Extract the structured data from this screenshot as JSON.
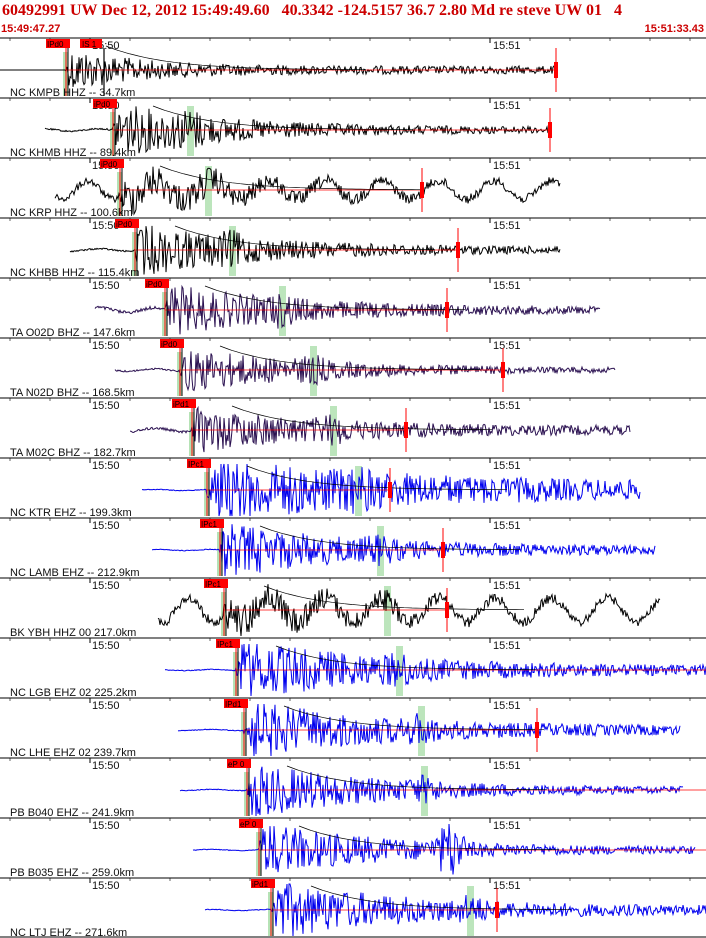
{
  "header": {
    "title": "60492991 UW Dec 12, 2012 15:49:49.60   40.3342 -124.5157 36.7 2.80 Md re steve UW 01   4",
    "time_start": "15:49:47.27",
    "time_end": "15:51:33.43"
  },
  "time_labels": {
    "t1550": "15:50",
    "t1551": "15:51"
  },
  "colors": {
    "pick": "#ff0000",
    "s_window": "#b5e2b5",
    "trace_black": "#000000",
    "trace_purple": "#2a1050",
    "trace_blue": "#0000ee",
    "label_text": "#111111",
    "frame": "#000000"
  },
  "traces": [
    {
      "station": "NC KMPB HHZ -- 34.7km",
      "pick": "IPd0",
      "pick2": "IS 1",
      "color": "trace_black",
      "onset": 66,
      "s": 106,
      "start": 0,
      "end": 556,
      "amp": 20,
      "pre": 1,
      "post": 4,
      "coda": 70,
      "endpick": 556,
      "hasS": false,
      "style": "flat"
    },
    {
      "station": "NC KHMB HHZ -- 89.4km",
      "pick": "iPd0",
      "pick2": "",
      "color": "trace_black",
      "onset": 113,
      "s": 190,
      "start": 45,
      "end": 550,
      "amp": 26,
      "pre": 2,
      "post": 3,
      "coda": 110,
      "endpick": 550,
      "hasS": true,
      "style": "normal"
    },
    {
      "station": "NC KRP HHZ -- 100.6km",
      "pick": "iPd0",
      "pick2": "",
      "color": "trace_black",
      "onset": 120,
      "s": 208,
      "start": 55,
      "end": 560,
      "amp": 28,
      "pre": 9,
      "post": 6,
      "coda": 120,
      "endpick": 422,
      "hasS": true,
      "style": "wavy"
    },
    {
      "station": "NC KHBB HHZ -- 115.4km",
      "pick": "iPd0",
      "pick2": "",
      "color": "trace_black",
      "onset": 135,
      "s": 232,
      "start": 70,
      "end": 560,
      "amp": 25,
      "pre": 2,
      "post": 3,
      "coda": 120,
      "endpick": 458,
      "hasS": true,
      "style": "normal"
    },
    {
      "station": "TA O02D BHZ -- 147.6km",
      "pick": "iPd0",
      "pick2": "",
      "color": "trace_purple",
      "onset": 165,
      "s": 282,
      "start": 95,
      "end": 600,
      "amp": 24,
      "pre": 4,
      "post": 3,
      "coda": 130,
      "endpick": 447,
      "hasS": true,
      "style": "normal"
    },
    {
      "station": "TA N02D BHZ -- 168.5km",
      "pick": "iPd0",
      "pick2": "",
      "color": "trace_purple",
      "onset": 180,
      "s": 313,
      "start": 115,
      "end": 615,
      "amp": 22,
      "pre": 2,
      "post": 2,
      "coda": 130,
      "endpick": 503,
      "hasS": true,
      "style": "normal"
    },
    {
      "station": "TA M02C BHZ -- 182.7km",
      "pick": "iPd1",
      "pick2": "",
      "color": "trace_purple",
      "onset": 192,
      "s": 333,
      "start": 130,
      "end": 630,
      "amp": 20,
      "pre": 3,
      "post": 4,
      "coda": 130,
      "endpick": 406,
      "hasS": true,
      "style": "normal"
    },
    {
      "station": "NC KTR EHZ -- 199.3km",
      "pick": "IPc1",
      "pick2": "",
      "color": "trace_blue",
      "onset": 207,
      "s": 358,
      "start": 142,
      "end": 640,
      "amp": 28,
      "pre": 1,
      "post": 7,
      "coda": 190,
      "endpick": 390,
      "hasS": true,
      "style": "normal"
    },
    {
      "station": "NC LAMB EHZ -- 212.9km",
      "pick": "IPc1",
      "pick2": "",
      "color": "trace_blue",
      "onset": 220,
      "s": 380,
      "start": 152,
      "end": 655,
      "amp": 26,
      "pre": 1,
      "post": 4,
      "coda": 120,
      "endpick": 443,
      "hasS": true,
      "style": "normal"
    },
    {
      "station": "BK YBH HHZ 00 217.0km",
      "pick": "IPc1",
      "pick2": "",
      "color": "trace_black",
      "onset": 224,
      "s": 387,
      "start": 158,
      "end": 660,
      "amp": 28,
      "pre": 12,
      "post": 6,
      "coda": 120,
      "endpick": 447,
      "hasS": true,
      "style": "wavy"
    },
    {
      "station": "NC LGB EHZ 02 225.2km",
      "pick": "IPc1",
      "pick2": "",
      "color": "trace_blue",
      "onset": 236,
      "s": 399,
      "start": 165,
      "end": 706,
      "amp": 29,
      "pre": 1,
      "post": 4,
      "coda": 140,
      "endpick": 0,
      "hasS": true,
      "style": "normal"
    },
    {
      "station": "NC LHE EHZ 02 239.7km",
      "pick": "IPd1",
      "pick2": "",
      "color": "trace_blue",
      "onset": 244,
      "s": 421,
      "start": 178,
      "end": 680,
      "amp": 28,
      "pre": 1,
      "post": 4,
      "coda": 130,
      "endpick": 537,
      "hasS": true,
      "style": "normal"
    },
    {
      "station": "PB B040 EHZ -- 241.9km",
      "pick": "eP 0",
      "pick2": "",
      "color": "trace_blue",
      "onset": 247,
      "s": 424,
      "start": 180,
      "end": 683,
      "amp": 27,
      "pre": 1,
      "post": 3,
      "coda": 120,
      "endpick": 0,
      "hasS": true,
      "style": "normal"
    },
    {
      "station": "PB B035 EHZ -- 259.0km",
      "pick": "eP 0",
      "pick2": "",
      "color": "trace_blue",
      "onset": 259,
      "s": 450,
      "start": 193,
      "end": 695,
      "amp": 26,
      "pre": 1,
      "post": 3,
      "coda": 120,
      "endpick": 0,
      "hasS": false,
      "style": "burst"
    },
    {
      "station": "NC LTJ EHZ -- 271.6km",
      "pick": "iPd1",
      "pick2": "",
      "color": "trace_blue",
      "onset": 271,
      "s": 470,
      "start": 205,
      "end": 706,
      "amp": 27,
      "pre": 1,
      "post": 4,
      "coda": 130,
      "endpick": 497,
      "hasS": true,
      "style": "normal"
    }
  ]
}
